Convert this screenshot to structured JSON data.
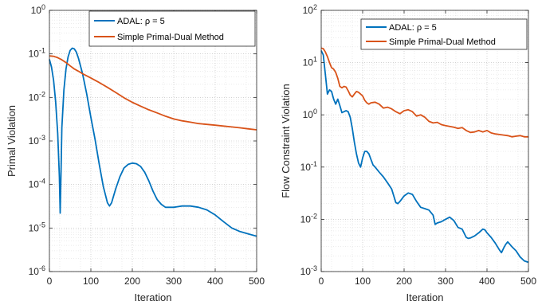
{
  "chart_data": [
    {
      "type": "line",
      "title": "",
      "xlabel": "Iteration",
      "ylabel": "Primal Violation",
      "xlim": [
        0,
        500
      ],
      "ylim": [
        1e-06,
        1
      ],
      "yscale": "log",
      "grid": true,
      "minor_grid": true,
      "legend_position": "top-right",
      "x_ticks": [
        0,
        100,
        200,
        300,
        400,
        500
      ],
      "y_ticks": [
        {
          "value": 1e-06,
          "base": "10",
          "exp": "-6"
        },
        {
          "value": 1e-05,
          "base": "10",
          "exp": "-5"
        },
        {
          "value": 0.0001,
          "base": "10",
          "exp": "-4"
        },
        {
          "value": 0.001,
          "base": "10",
          "exp": "-3"
        },
        {
          "value": 0.01,
          "base": "10",
          "exp": "-2"
        },
        {
          "value": 0.1,
          "base": "10",
          "exp": "-1"
        },
        {
          "value": 1,
          "base": "10",
          "exp": "0"
        }
      ],
      "series": [
        {
          "name": "ADAL: ρ = 5",
          "color": "#0072BD",
          "x": [
            0,
            5,
            10,
            15,
            20,
            24,
            26,
            28,
            30,
            35,
            40,
            45,
            50,
            55,
            60,
            65,
            70,
            80,
            90,
            100,
            110,
            120,
            130,
            140,
            145,
            150,
            160,
            170,
            180,
            190,
            200,
            210,
            220,
            230,
            240,
            250,
            260,
            270,
            280,
            290,
            300,
            310,
            320,
            340,
            360,
            380,
            400,
            420,
            440,
            460,
            480,
            500
          ],
          "y": [
            0.075,
            0.05,
            0.025,
            0.008,
            0.0015,
            0.00015,
            2.2e-05,
            0.0002,
            0.002,
            0.015,
            0.045,
            0.085,
            0.12,
            0.135,
            0.13,
            0.11,
            0.08,
            0.035,
            0.012,
            0.0035,
            0.0011,
            0.0003,
            9e-05,
            3.8e-05,
            3.2e-05,
            3.8e-05,
            8e-05,
            0.00015,
            0.00024,
            0.00029,
            0.00031,
            0.0003,
            0.00026,
            0.00019,
            0.00012,
            7e-05,
            4.5e-05,
            3.5e-05,
            3e-05,
            3e-05,
            3e-05,
            3.1e-05,
            3.2e-05,
            3.2e-05,
            3e-05,
            2.6e-05,
            2e-05,
            1.4e-05,
            1e-05,
            8.3e-06,
            7.3e-06,
            6.5e-06
          ]
        },
        {
          "name": "Simple Primal-Dual Method",
          "color": "#D95319",
          "x": [
            0,
            10,
            20,
            30,
            40,
            50,
            60,
            70,
            80,
            100,
            120,
            140,
            160,
            180,
            200,
            220,
            240,
            260,
            280,
            300,
            320,
            340,
            360,
            380,
            400,
            420,
            440,
            460,
            480,
            500
          ],
          "y": [
            0.09,
            0.088,
            0.082,
            0.073,
            0.063,
            0.053,
            0.045,
            0.04,
            0.035,
            0.028,
            0.022,
            0.017,
            0.013,
            0.0098,
            0.0077,
            0.0063,
            0.0052,
            0.0044,
            0.0037,
            0.0032,
            0.0029,
            0.0027,
            0.0025,
            0.0024,
            0.0023,
            0.0022,
            0.0021,
            0.002,
            0.0019,
            0.0018
          ]
        }
      ]
    },
    {
      "type": "line",
      "title": "",
      "xlabel": "Iteration",
      "ylabel": "Flow Constraint Violation",
      "xlim": [
        0,
        500
      ],
      "ylim": [
        0.001,
        100
      ],
      "yscale": "log",
      "grid": true,
      "minor_grid": true,
      "legend_position": "top-right",
      "x_ticks": [
        0,
        100,
        200,
        300,
        400,
        500
      ],
      "y_ticks": [
        {
          "value": 0.001,
          "base": "10",
          "exp": "-3"
        },
        {
          "value": 0.01,
          "base": "10",
          "exp": "-2"
        },
        {
          "value": 0.1,
          "base": "10",
          "exp": "-1"
        },
        {
          "value": 1,
          "base": "10",
          "exp": "0"
        },
        {
          "value": 10,
          "base": "10",
          "exp": "1"
        },
        {
          "value": 100,
          "base": "10",
          "exp": "2"
        }
      ],
      "series": [
        {
          "name": "ADAL: ρ = 5",
          "color": "#0072BD",
          "x": [
            0,
            5,
            10,
            15,
            20,
            25,
            30,
            35,
            40,
            45,
            50,
            55,
            60,
            65,
            70,
            75,
            80,
            85,
            90,
            95,
            100,
            105,
            110,
            115,
            120,
            125,
            130,
            140,
            150,
            160,
            170,
            180,
            185,
            190,
            200,
            210,
            220,
            230,
            240,
            250,
            260,
            270,
            275,
            280,
            290,
            300,
            310,
            320,
            330,
            340,
            350,
            355,
            360,
            370,
            380,
            390,
            395,
            400,
            410,
            420,
            430,
            435,
            440,
            445,
            450,
            460,
            470,
            480,
            490,
            500
          ],
          "y": [
            17,
            14,
            6,
            2.5,
            3,
            2.8,
            2,
            1.6,
            2,
            1.5,
            1.1,
            1.15,
            1.2,
            1.15,
            0.9,
            0.55,
            0.3,
            0.18,
            0.12,
            0.1,
            0.15,
            0.2,
            0.2,
            0.18,
            0.14,
            0.11,
            0.1,
            0.08,
            0.065,
            0.05,
            0.038,
            0.021,
            0.02,
            0.022,
            0.028,
            0.032,
            0.03,
            0.022,
            0.017,
            0.016,
            0.015,
            0.012,
            0.008,
            0.0085,
            0.009,
            0.01,
            0.011,
            0.0095,
            0.007,
            0.0065,
            0.0045,
            0.0043,
            0.0044,
            0.0048,
            0.0055,
            0.0065,
            0.0063,
            0.0055,
            0.0045,
            0.0035,
            0.0026,
            0.0023,
            0.0028,
            0.0033,
            0.0037,
            0.003,
            0.0025,
            0.0019,
            0.0016,
            0.0015
          ]
        },
        {
          "name": "Simple Primal-Dual Method",
          "color": "#D95319",
          "x": [
            0,
            5,
            10,
            15,
            20,
            25,
            30,
            35,
            40,
            45,
            50,
            55,
            60,
            65,
            70,
            75,
            80,
            85,
            90,
            95,
            100,
            105,
            110,
            115,
            120,
            130,
            140,
            150,
            160,
            170,
            180,
            190,
            200,
            210,
            220,
            230,
            240,
            250,
            260,
            270,
            280,
            290,
            300,
            310,
            320,
            330,
            340,
            350,
            360,
            370,
            380,
            390,
            400,
            410,
            420,
            430,
            440,
            450,
            460,
            470,
            480,
            490,
            500
          ],
          "y": [
            19,
            18.5,
            16,
            13,
            10,
            8,
            7.5,
            6.5,
            5,
            3.5,
            3.3,
            3.5,
            3.4,
            2.9,
            2.4,
            2.2,
            2.5,
            2.8,
            2.7,
            2.5,
            2.3,
            1.9,
            1.7,
            1.6,
            1.7,
            1.75,
            1.6,
            1.35,
            1.4,
            1.3,
            1.15,
            1.05,
            1.2,
            1.25,
            1.15,
            0.95,
            1.0,
            0.9,
            0.75,
            0.7,
            0.72,
            0.65,
            0.62,
            0.6,
            0.58,
            0.55,
            0.57,
            0.5,
            0.46,
            0.47,
            0.5,
            0.47,
            0.5,
            0.45,
            0.43,
            0.42,
            0.41,
            0.4,
            0.38,
            0.39,
            0.4,
            0.38,
            0.38
          ]
        }
      ]
    }
  ]
}
